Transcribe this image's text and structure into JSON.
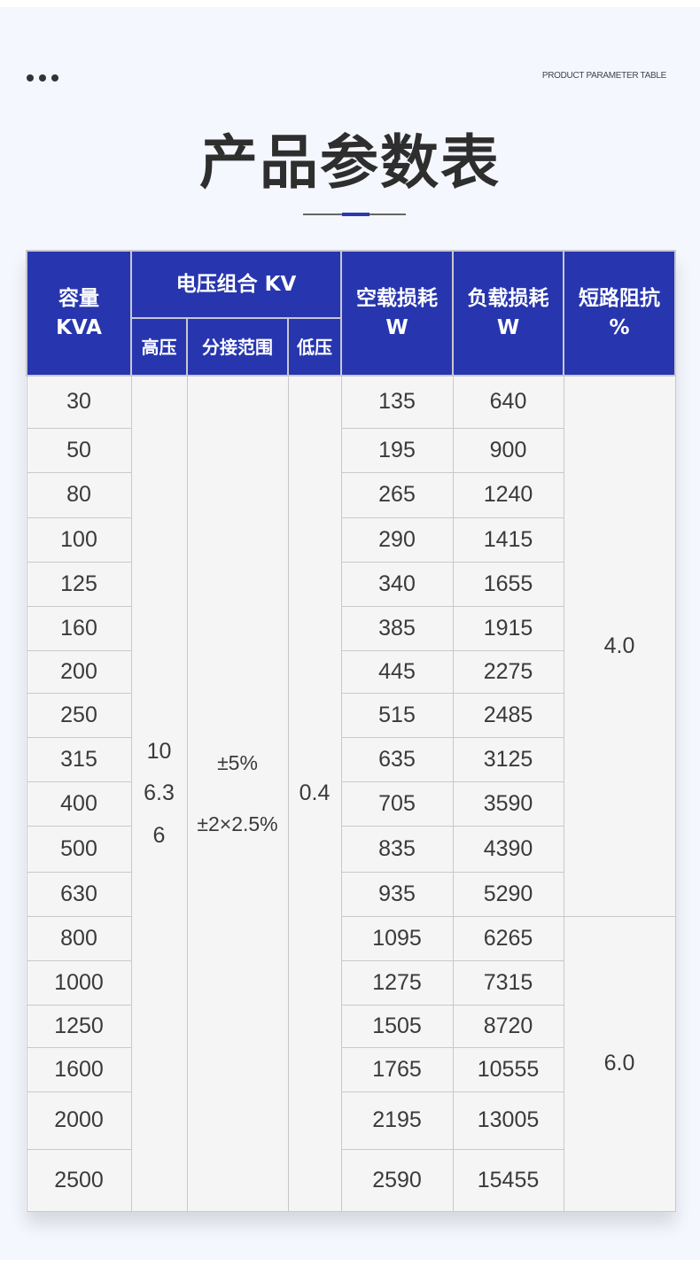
{
  "header": {
    "dots_icon": "more-dots-icon",
    "english_title": "PRODUCT PARAMETER TABLE",
    "title": "产品参数表"
  },
  "colors": {
    "accent": "#2736ae",
    "background": "#f4f7fe",
    "cell": "#f5f5f5"
  },
  "table": {
    "headers": {
      "capacity": [
        "容量",
        "KVA"
      ],
      "voltage_group": "电压组合 KV",
      "high_voltage": "高压",
      "tap_range": "分接范围",
      "low_voltage": "低压",
      "no_load_loss": [
        "空载损耗",
        "W"
      ],
      "load_loss": [
        "负载损耗",
        "W"
      ],
      "impedance": [
        "短路阻抗",
        "%"
      ]
    },
    "high_voltage_values": [
      "10",
      "6.3",
      "6"
    ],
    "tap_range_values": [
      "±5%",
      "±2×2.5%"
    ],
    "low_voltage_value": "0.4",
    "impedance_groups": [
      "4.0",
      "6.0"
    ],
    "rows": [
      {
        "capacity": "30",
        "no_load": "135",
        "load": "640"
      },
      {
        "capacity": "50",
        "no_load": "195",
        "load": "900"
      },
      {
        "capacity": "80",
        "no_load": "265",
        "load": "1240"
      },
      {
        "capacity": "100",
        "no_load": "290",
        "load": "1415"
      },
      {
        "capacity": "125",
        "no_load": "340",
        "load": "1655"
      },
      {
        "capacity": "160",
        "no_load": "385",
        "load": "1915"
      },
      {
        "capacity": "200",
        "no_load": "445",
        "load": "2275"
      },
      {
        "capacity": "250",
        "no_load": "515",
        "load": "2485"
      },
      {
        "capacity": "315",
        "no_load": "635",
        "load": "3125"
      },
      {
        "capacity": "400",
        "no_load": "705",
        "load": "3590"
      },
      {
        "capacity": "500",
        "no_load": "835",
        "load": "4390"
      },
      {
        "capacity": "630",
        "no_load": "935",
        "load": "5290"
      },
      {
        "capacity": "800",
        "no_load": "1095",
        "load": "6265"
      },
      {
        "capacity": "1000",
        "no_load": "1275",
        "load": "7315"
      },
      {
        "capacity": "1250",
        "no_load": "1505",
        "load": "8720"
      },
      {
        "capacity": "1600",
        "no_load": "1765",
        "load": "10555"
      },
      {
        "capacity": "2000",
        "no_load": "2195",
        "load": "13005"
      },
      {
        "capacity": "2500",
        "no_load": "2590",
        "load": "15455"
      }
    ]
  }
}
